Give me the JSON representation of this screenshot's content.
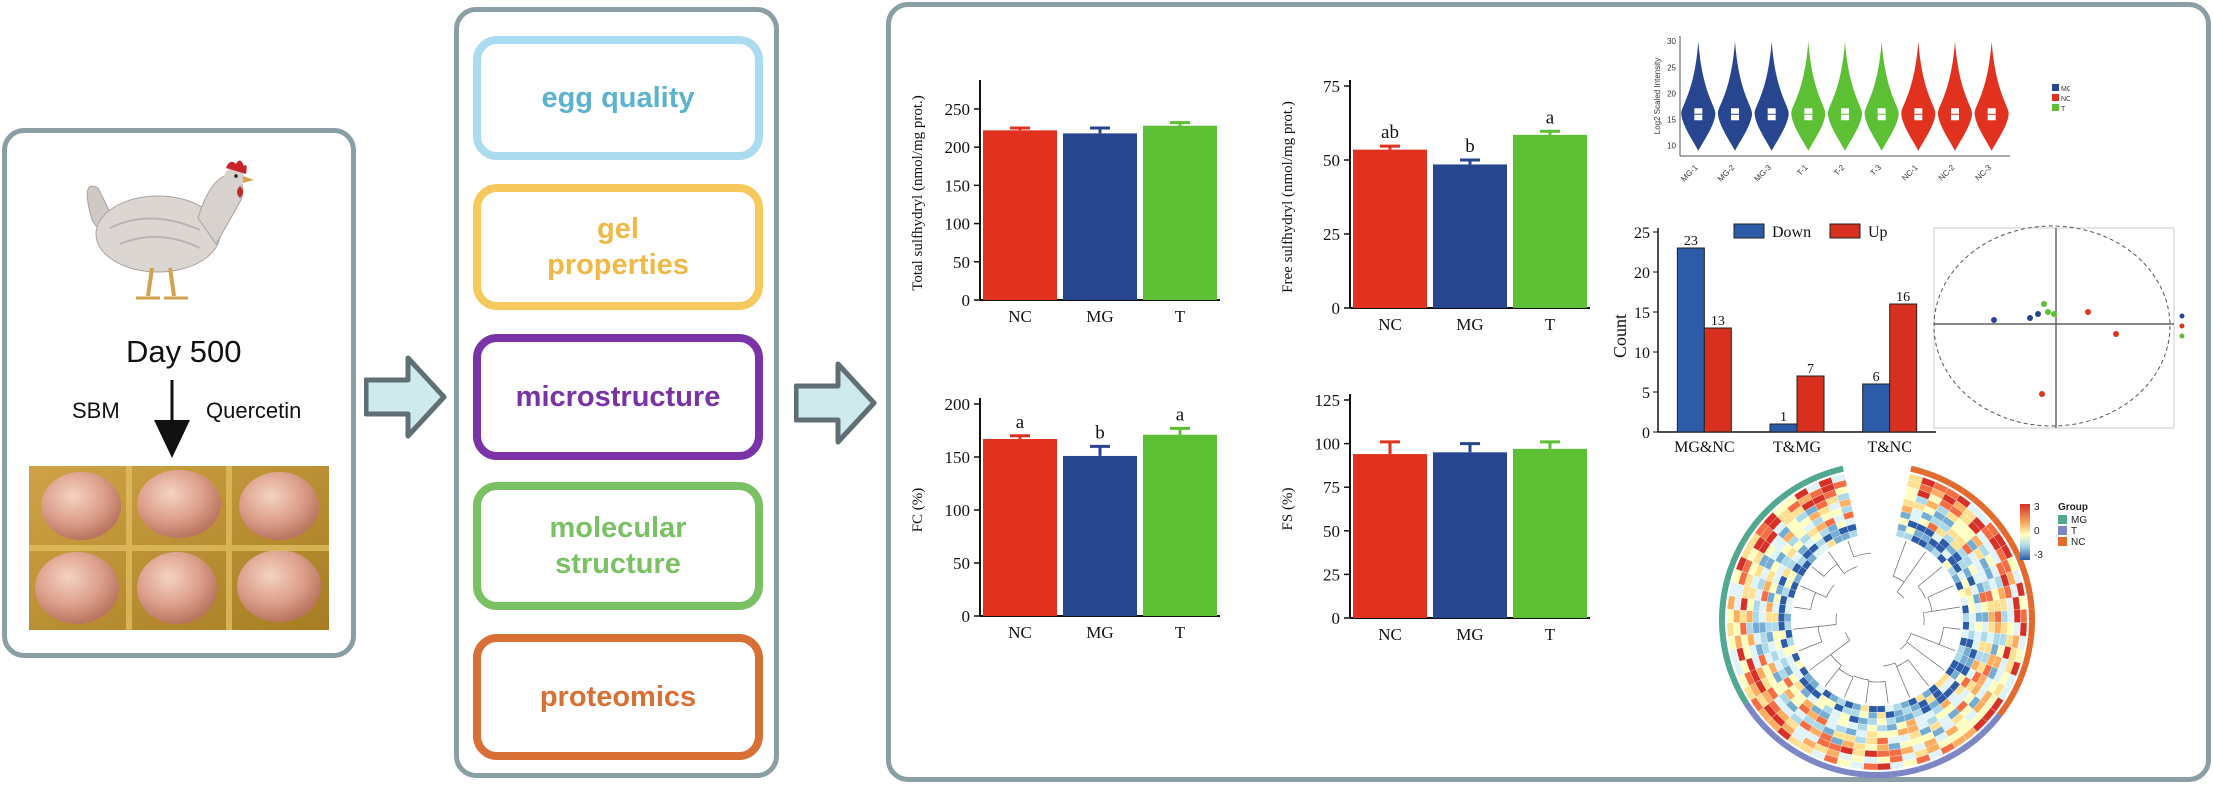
{
  "left": {
    "day_label": "Day 500",
    "sbm_label": "SBM",
    "quercetin_label": "Quercetin"
  },
  "middle": {
    "boxes": [
      {
        "label": "egg quality",
        "color": "#5bb3cf",
        "border": "#aadbef"
      },
      {
        "label": "gel properties",
        "color": "#f0b945",
        "border": "#f6c95d"
      },
      {
        "label": "microstructure",
        "color": "#7a33a6",
        "border": "#7a33a6"
      },
      {
        "label": "molecular structure",
        "color": "#79c163",
        "border": "#79c163"
      },
      {
        "label": "proteomics",
        "color": "#d86f34",
        "border": "#d86f34"
      }
    ]
  },
  "colors": {
    "NC": "#e0321e",
    "MG": "#284590",
    "T": "#5cbf34",
    "panel_border": "#8a9ea5",
    "arrow_fill": "#cfeaec"
  },
  "chart_data": [
    {
      "type": "bar",
      "categories": [
        "NC",
        "MG",
        "T"
      ],
      "values": [
        222,
        218,
        228
      ],
      "errors": [
        3,
        7,
        4
      ],
      "letters": [
        "",
        "",
        ""
      ],
      "ylabel": "Total sulfhydryl (nmol/mg prot.)",
      "ylim": [
        0,
        280
      ],
      "yticks": [
        0,
        50,
        100,
        150,
        200,
        250
      ],
      "ytick_labels": [
        "0",
        "50",
        "100",
        "150",
        "200",
        "250"
      ]
    },
    {
      "type": "bar",
      "categories": [
        "NC",
        "MG",
        "T"
      ],
      "values": [
        53.5,
        48.5,
        58.5
      ],
      "errors": [
        1.2,
        1.5,
        1.2
      ],
      "letters": [
        "ab",
        "b",
        "a"
      ],
      "ylabel": "Free sulfhydryl (nmol/mg prot.)",
      "ylim": [
        0,
        75
      ],
      "yticks": [
        0,
        25,
        50,
        75
      ],
      "ytick_labels": [
        "0",
        "25",
        "50",
        "75"
      ]
    },
    {
      "type": "bar",
      "categories": [
        "NC",
        "MG",
        "T"
      ],
      "values": [
        167,
        151,
        171
      ],
      "errors": [
        3,
        9,
        6
      ],
      "letters": [
        "a",
        "b",
        "a"
      ],
      "ylabel": "FC (%)",
      "ylim": [
        0,
        200
      ],
      "yticks": [
        0,
        50,
        100,
        150,
        200
      ],
      "ytick_labels": [
        "0",
        "50",
        "100",
        "150",
        "200"
      ]
    },
    {
      "type": "bar",
      "categories": [
        "NC",
        "MG",
        "T"
      ],
      "values": [
        94,
        95,
        97
      ],
      "errors": [
        7,
        5,
        4
      ],
      "letters": [
        "",
        "",
        ""
      ],
      "ylabel": "FS (%)",
      "ylim": [
        0,
        125
      ],
      "yticks": [
        0,
        25,
        50,
        75,
        100,
        125
      ],
      "ytick_labels": [
        "0",
        "25",
        "50",
        "75",
        "100",
        "125"
      ]
    },
    {
      "type": "bar",
      "categories": [
        "MG&NC",
        "T&MG",
        "T&NC"
      ],
      "series": [
        {
          "name": "Down",
          "values": [
            23,
            1,
            6
          ]
        },
        {
          "name": "Up",
          "values": [
            13,
            7,
            16
          ]
        }
      ],
      "ylabel": "Count",
      "ylim": [
        0,
        25
      ],
      "yticks": [
        0,
        5,
        10,
        15,
        20,
        25
      ],
      "ytick_labels": [
        "0",
        "5",
        "10",
        "15",
        "20",
        "25"
      ],
      "legend": "top"
    },
    {
      "type": "violin",
      "categories": [
        "MG-1",
        "MG-2",
        "MG-3",
        "T-1",
        "T-2",
        "T-3",
        "NC-1",
        "NC-2",
        "NC-3"
      ],
      "groups": [
        "MG",
        "MG",
        "MG",
        "T",
        "T",
        "T",
        "NC",
        "NC",
        "NC"
      ],
      "medians": [
        16,
        16,
        16,
        16,
        16,
        16,
        16,
        16,
        16
      ],
      "ylabel": "Log2 Scaled Intensity",
      "ylim": [
        8,
        31
      ],
      "yticks": [
        10,
        15,
        20,
        25,
        30
      ],
      "ytick_labels": [
        "10",
        "15",
        "20",
        "25",
        "30"
      ],
      "legend": [
        "MG",
        "NC",
        "T"
      ]
    }
  ],
  "heatmap_legend": {
    "title": "Group",
    "scale_labels": [
      "3",
      "0",
      "-3"
    ],
    "groups": [
      "MG",
      "T",
      "NC"
    ]
  }
}
